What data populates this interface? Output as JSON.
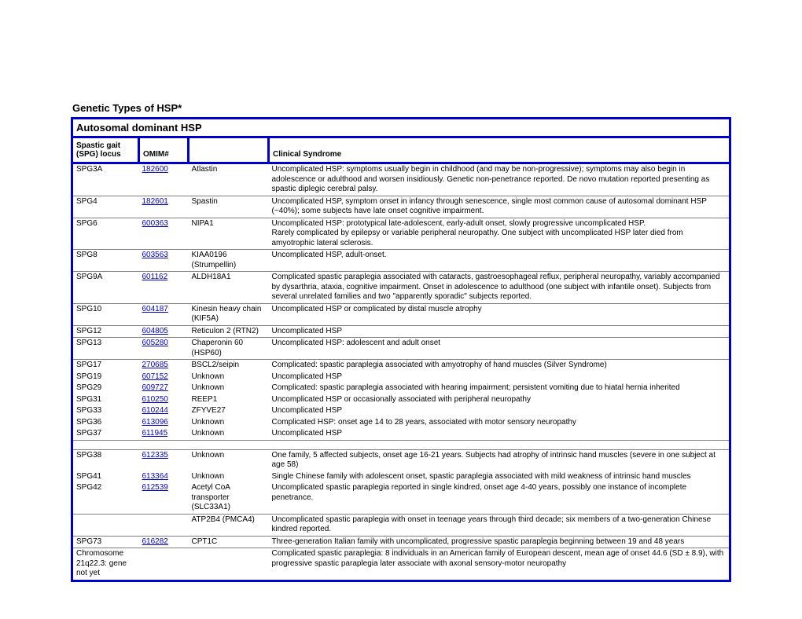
{
  "page": {
    "title": "Genetic Types of HSP*",
    "section_header": "Autosomal dominant HSP",
    "col1_header_line1": "Spastic gait",
    "col1_header_line2": "(SPG)  locus",
    "col2_header": "OMIM#",
    "col4_header": "Clinical Syndrome"
  },
  "style": {
    "border_color": "#0000cc",
    "grid_color": "#808080",
    "link_color": "#0000cc",
    "font_size_title": 13,
    "font_size_cell": 10
  },
  "rows": [
    {
      "locus": "SPG3A",
      "omim": "182600",
      "protein": "Atlastin",
      "clinical": "Uncomplicated HSP:  symptoms usually begin in childhood (and may be non-progressive); symptoms may also begin in adolescence or adulthood and worsen insidiously.  Genetic non-penetrance reported.  De novo mutation reported presenting as spastic diplegic cerebral palsy."
    },
    {
      "locus": "SPG4",
      "omim": "182601",
      "protein": "Spastin",
      "clinical": "Uncomplicated HSP, symptom onset in infancy through senescence, single most common cause of autosomal dominant HSP (~40%); some subjects have late onset cognitive impairment."
    },
    {
      "locus": "SPG6",
      "omim": "600363",
      "protein": " NIPA1",
      "clinical": "Uncomplicated HSP: prototypical late-adolescent, early-adult onset, slowly progressive uncomplicated HSP.\nRarely complicated by epilepsy or variable peripheral neuropathy.  One subject with uncomplicated HSP later died from amyotrophic lateral sclerosis."
    },
    {
      "locus": "SPG8",
      "omim": "603563",
      "protein": "KIAA0196 (Strumpellin)",
      "clinical": "Uncomplicated HSP, adult-onset."
    },
    {
      "locus": "SPG9A",
      "omim": "601162",
      "protein": "ALDH18A1",
      "clinical": "Complicated spastic paraplegia associated with cataracts, gastroesophageal reflux, peripheral neuropathy, variably accompanied by dysarthria, ataxia, cognitive impairment.  Onset in adolescence to adulthood (one subject with infantile onset).  Subjects from several unrelated families and two \"apparently sporadic\" subjects reported."
    },
    {
      "locus": "SPG10",
      "omim": "604187",
      "protein": "Kinesin heavy chain (KIF5A)",
      "clinical": "Uncomplicated HSP or complicated by distal muscle atrophy"
    },
    {
      "locus": "SPG12",
      "omim": "604805",
      "protein": "Reticulon 2 (RTN2)",
      "clinical": "Uncomplicated HSP"
    },
    {
      "locus": "SPG13",
      "omim": "605280",
      "protein": "Chaperonin 60 (HSP60)",
      "clinical": "Uncomplicated HSP: adolescent and adult onset"
    },
    {
      "locus": "SPG17",
      "omim": "270685",
      "protein": "BSCL2/seipin",
      "clinical": "Complicated:  spastic paraplegia associated with amyotrophy of hand muscles (Silver Syndrome)"
    },
    {
      "locus": "SPG19",
      "omim": "607152",
      "protein": "Unknown",
      "clinical": "Uncomplicated HSP"
    },
    {
      "locus": "SPG29",
      "omim": "609727",
      "protein": "Unknown",
      "clinical": "Complicated: spastic paraplegia associated with hearing impairment; persistent vomiting due to hiatal hernia inherited"
    },
    {
      "locus": "SPG31",
      "omim": "610250",
      "protein": "REEP1",
      "clinical": "Uncomplicated HSP or occasionally associated with peripheral neuropathy"
    },
    {
      "locus": "SPG33",
      "omim": "610244",
      "protein": "ZFYVE27",
      "clinical": "Uncomplicated HSP"
    },
    {
      "locus": "SPG36",
      "omim": "613096",
      "protein": "Unknown",
      "clinical": "Complicated HSP: onset age 14 to 28 years, associated with motor sensory neuropathy"
    },
    {
      "locus": "SPG37",
      "omim": "611945",
      "protein": "Unknown",
      "clinical": "Uncomplicated HSP"
    },
    {
      "locus": "SPG38",
      "omim": "612335",
      "protein": "Unknown",
      "clinical": "One family, 5 affected subjects, onset age 16-21 years.  Subjects had atrophy of intrinsic hand muscles (severe in one subject at age 58)"
    },
    {
      "locus": "SPG41",
      "omim": "613364",
      "protein": "Unknown",
      "clinical": "Single Chinese family with adolescent onset, spastic  paraplegia associated with mild weakness of intrinsic hand muscles"
    },
    {
      "locus": "SPG42",
      "omim": "612539",
      "protein": "Acetyl CoA transporter (SLC33A1)",
      "clinical": "Uncomplicated spastic paraplegia reported in single kindred, onset age 4-40 years, possibly one instance of incomplete penetrance."
    },
    {
      "locus": "",
      "omim": "",
      "protein": "ATP2B4 (PMCA4)",
      "clinical": "Uncomplicated spastic paraplegia with onset in teenage years through third decade; six members of a two-generation Chinese kindred reported."
    },
    {
      "locus": "SPG73",
      "omim": "616282",
      "protein": "CPT1C",
      "clinical": "Three-generation Italian family with uncomplicated, progressive spastic paraplegia beginning between 19 and 48 years"
    },
    {
      "locus": "Chromosome 21q22.3: gene not yet",
      "omim": "",
      "protein": "",
      "clinical": "Complicated spastic paraplegia:  8 individuals in an American family of European descent, mean age of onset  44.6 (SD ± 8.9), with progressive spastic paraplegia later associate with axonal sensory-motor neuropathy"
    }
  ]
}
